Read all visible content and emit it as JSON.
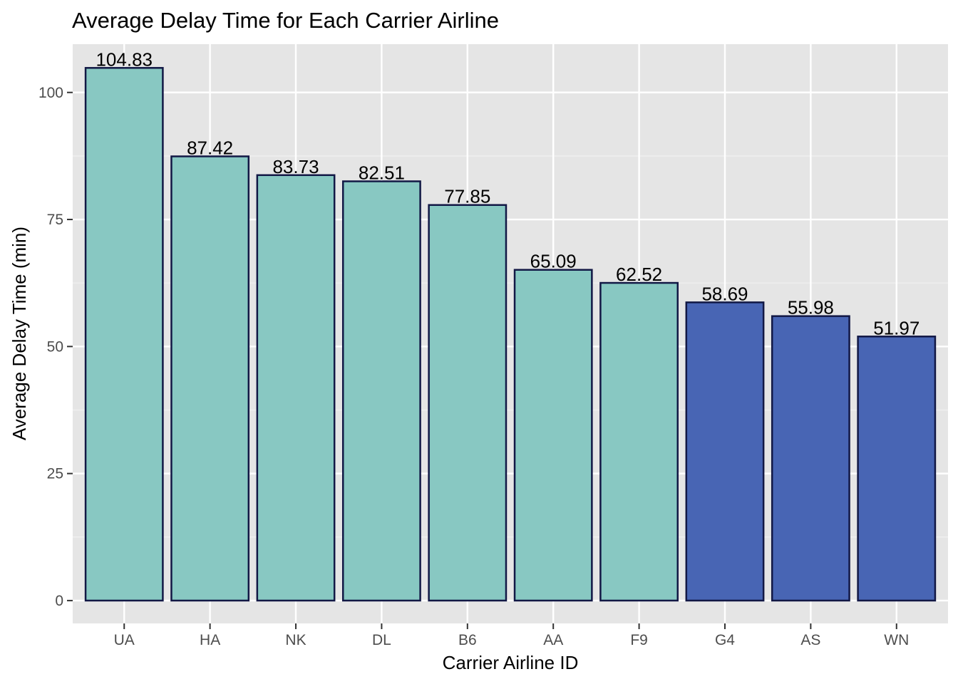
{
  "chart_data": {
    "type": "bar",
    "title": "Average Delay Time for Each Carrier Airline",
    "xlabel": "Carrier Airline ID",
    "ylabel": "Average Delay Time (min)",
    "ylim": [
      -4.5,
      109.5
    ],
    "yticks": [
      0,
      25,
      50,
      75,
      100
    ],
    "grid": true,
    "legend": "none",
    "categories": [
      "UA",
      "HA",
      "NK",
      "DL",
      "B6",
      "AA",
      "F9",
      "G4",
      "AS",
      "WN"
    ],
    "values": [
      104.83,
      87.42,
      83.73,
      82.51,
      77.85,
      65.09,
      62.52,
      58.69,
      55.98,
      51.97
    ],
    "data_labels": [
      "104.83",
      "87.42",
      "83.73",
      "82.51",
      "77.85",
      "65.09",
      "62.52",
      "58.69",
      "55.98",
      "51.97"
    ],
    "highlight_count": 7,
    "colors": {
      "highlight": "#88c8c2",
      "other": "#4865b4",
      "bar_outline": "#121845",
      "panel": "#e5e5e5",
      "grid_major": "#ffffff",
      "grid_minor": "#f2f2f2"
    }
  }
}
